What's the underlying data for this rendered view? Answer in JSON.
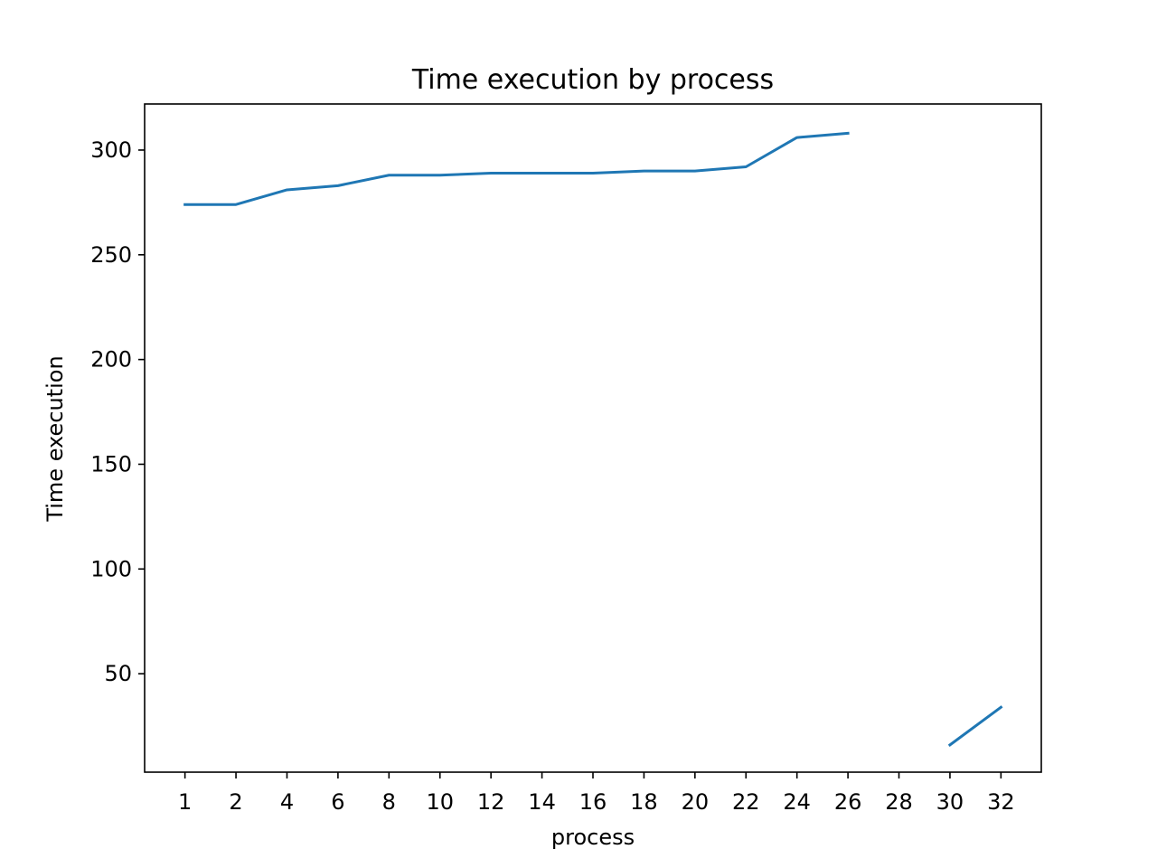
{
  "chart_data": {
    "type": "line",
    "title": "Time execution by process",
    "xlabel": "process",
    "ylabel": "Time execution",
    "categories": [
      "1",
      "2",
      "4",
      "6",
      "8",
      "10",
      "12",
      "14",
      "16",
      "18",
      "20",
      "22",
      "24",
      "26",
      "28",
      "30",
      "32"
    ],
    "series": [
      {
        "color": "#1f77b4",
        "values": [
          274,
          274,
          281,
          283,
          288,
          288,
          289,
          289,
          289,
          290,
          290,
          292,
          306,
          308,
          null,
          16,
          34
        ]
      }
    ],
    "yticks": [
      50,
      100,
      150,
      200,
      250,
      300
    ],
    "ylim": [
      3,
      322
    ],
    "grid": false,
    "legend": "none"
  }
}
